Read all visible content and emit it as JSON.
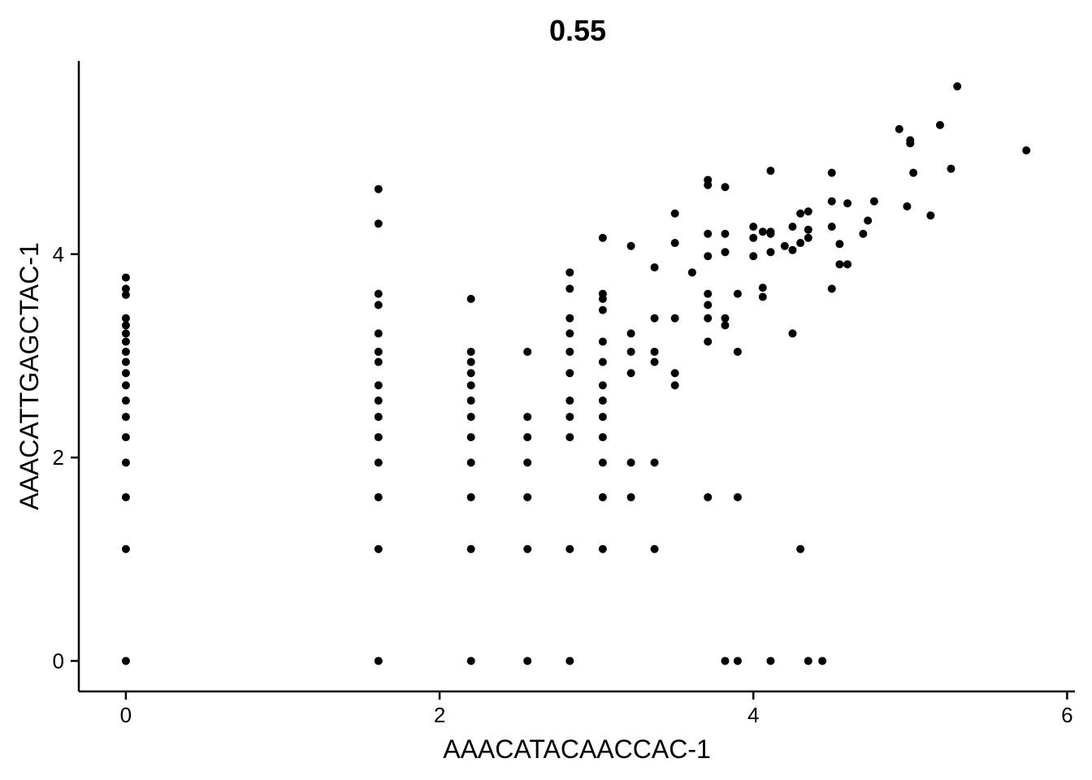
{
  "chart_data": {
    "type": "scatter",
    "title": "0.55",
    "xlabel": "AAACATACAACCAC-1",
    "ylabel": "AAACATTGAGCTAC-1",
    "xlim": [
      -0.3,
      6.05
    ],
    "ylim": [
      -0.3,
      5.9
    ],
    "xticks": [
      0,
      2,
      4,
      6
    ],
    "yticks": [
      0,
      2,
      4
    ],
    "grid": false,
    "legend": "none",
    "point_color": "#000000",
    "points": [
      [
        0,
        0
      ],
      [
        0,
        1.1
      ],
      [
        0,
        1.61
      ],
      [
        0,
        1.95
      ],
      [
        0,
        2.2
      ],
      [
        0,
        2.4
      ],
      [
        0,
        2.56
      ],
      [
        0,
        2.71
      ],
      [
        0,
        2.83
      ],
      [
        0,
        2.94
      ],
      [
        0,
        3.04
      ],
      [
        0,
        3.14
      ],
      [
        0,
        3.22
      ],
      [
        0,
        3.3
      ],
      [
        0,
        3.37
      ],
      [
        0,
        3.6
      ],
      [
        0,
        3.66
      ],
      [
        0,
        3.77
      ],
      [
        1.61,
        0
      ],
      [
        1.61,
        1.1
      ],
      [
        1.61,
        1.61
      ],
      [
        1.61,
        1.95
      ],
      [
        1.61,
        2.2
      ],
      [
        1.61,
        2.4
      ],
      [
        1.61,
        2.56
      ],
      [
        1.61,
        2.71
      ],
      [
        1.61,
        2.94
      ],
      [
        1.61,
        3.04
      ],
      [
        1.61,
        3.22
      ],
      [
        1.61,
        3.5
      ],
      [
        1.61,
        3.61
      ],
      [
        1.61,
        4.3
      ],
      [
        1.61,
        4.64
      ],
      [
        2.2,
        0
      ],
      [
        2.2,
        1.1
      ],
      [
        2.2,
        1.61
      ],
      [
        2.2,
        1.95
      ],
      [
        2.2,
        2.2
      ],
      [
        2.2,
        2.4
      ],
      [
        2.2,
        2.56
      ],
      [
        2.2,
        2.71
      ],
      [
        2.2,
        2.83
      ],
      [
        2.2,
        2.94
      ],
      [
        2.2,
        3.04
      ],
      [
        2.2,
        3.56
      ],
      [
        2.56,
        0
      ],
      [
        2.56,
        1.1
      ],
      [
        2.56,
        1.61
      ],
      [
        2.56,
        1.95
      ],
      [
        2.56,
        2.2
      ],
      [
        2.56,
        2.4
      ],
      [
        2.56,
        3.04
      ],
      [
        2.83,
        0
      ],
      [
        2.83,
        1.1
      ],
      [
        2.83,
        2.2
      ],
      [
        2.83,
        2.4
      ],
      [
        2.83,
        2.56
      ],
      [
        2.83,
        2.83
      ],
      [
        2.83,
        3.04
      ],
      [
        2.83,
        3.22
      ],
      [
        2.83,
        3.37
      ],
      [
        2.83,
        3.66
      ],
      [
        2.83,
        3.82
      ],
      [
        3.04,
        1.1
      ],
      [
        3.04,
        1.61
      ],
      [
        3.04,
        1.95
      ],
      [
        3.04,
        2.2
      ],
      [
        3.04,
        2.4
      ],
      [
        3.04,
        2.56
      ],
      [
        3.04,
        2.71
      ],
      [
        3.04,
        2.94
      ],
      [
        3.04,
        3.14
      ],
      [
        3.04,
        3.45
      ],
      [
        3.04,
        3.56
      ],
      [
        3.04,
        3.61
      ],
      [
        3.04,
        4.16
      ],
      [
        3.22,
        1.61
      ],
      [
        3.22,
        1.95
      ],
      [
        3.22,
        2.83
      ],
      [
        3.22,
        3.04
      ],
      [
        3.22,
        3.22
      ],
      [
        3.22,
        4.08
      ],
      [
        3.37,
        1.1
      ],
      [
        3.37,
        1.95
      ],
      [
        3.37,
        2.94
      ],
      [
        3.37,
        3.04
      ],
      [
        3.37,
        3.37
      ],
      [
        3.37,
        3.87
      ],
      [
        3.5,
        2.71
      ],
      [
        3.5,
        2.83
      ],
      [
        3.5,
        3.37
      ],
      [
        3.5,
        4.11
      ],
      [
        3.5,
        4.4
      ],
      [
        3.61,
        3.82
      ],
      [
        3.71,
        1.61
      ],
      [
        3.71,
        3.14
      ],
      [
        3.71,
        3.37
      ],
      [
        3.71,
        3.5
      ],
      [
        3.71,
        3.61
      ],
      [
        3.71,
        3.98
      ],
      [
        3.71,
        4.2
      ],
      [
        3.71,
        4.68
      ],
      [
        3.71,
        4.73
      ],
      [
        3.82,
        0
      ],
      [
        3.82,
        3.3
      ],
      [
        3.82,
        3.37
      ],
      [
        3.82,
        4.02
      ],
      [
        3.82,
        4.2
      ],
      [
        3.82,
        4.66
      ],
      [
        3.9,
        0
      ],
      [
        3.9,
        1.61
      ],
      [
        3.9,
        3.04
      ],
      [
        3.9,
        3.61
      ],
      [
        4.0,
        3.98
      ],
      [
        4.0,
        4.16
      ],
      [
        4.0,
        4.27
      ],
      [
        4.06,
        4.22
      ],
      [
        4.06,
        3.58
      ],
      [
        4.06,
        3.67
      ],
      [
        4.11,
        0
      ],
      [
        4.11,
        4.02
      ],
      [
        4.11,
        4.2
      ],
      [
        4.11,
        4.22
      ],
      [
        4.11,
        4.82
      ],
      [
        4.2,
        4.08
      ],
      [
        4.25,
        3.22
      ],
      [
        4.25,
        4.04
      ],
      [
        4.25,
        4.27
      ],
      [
        4.3,
        1.1
      ],
      [
        4.3,
        4.11
      ],
      [
        4.3,
        4.4
      ],
      [
        4.35,
        0
      ],
      [
        4.35,
        4.16
      ],
      [
        4.35,
        4.24
      ],
      [
        4.35,
        4.42
      ],
      [
        4.44,
        0
      ],
      [
        4.5,
        3.66
      ],
      [
        4.5,
        4.27
      ],
      [
        4.5,
        4.52
      ],
      [
        4.5,
        4.8
      ],
      [
        4.55,
        3.9
      ],
      [
        4.55,
        4.1
      ],
      [
        4.6,
        3.9
      ],
      [
        4.6,
        4.5
      ],
      [
        4.7,
        4.2
      ],
      [
        4.73,
        4.33
      ],
      [
        4.77,
        4.52
      ],
      [
        4.93,
        5.23
      ],
      [
        4.98,
        4.47
      ],
      [
        5.0,
        5.09
      ],
      [
        5.0,
        5.12
      ],
      [
        5.02,
        4.8
      ],
      [
        5.13,
        4.38
      ],
      [
        5.19,
        5.27
      ],
      [
        5.26,
        4.84
      ],
      [
        5.3,
        5.65
      ],
      [
        5.74,
        5.02
      ]
    ]
  }
}
